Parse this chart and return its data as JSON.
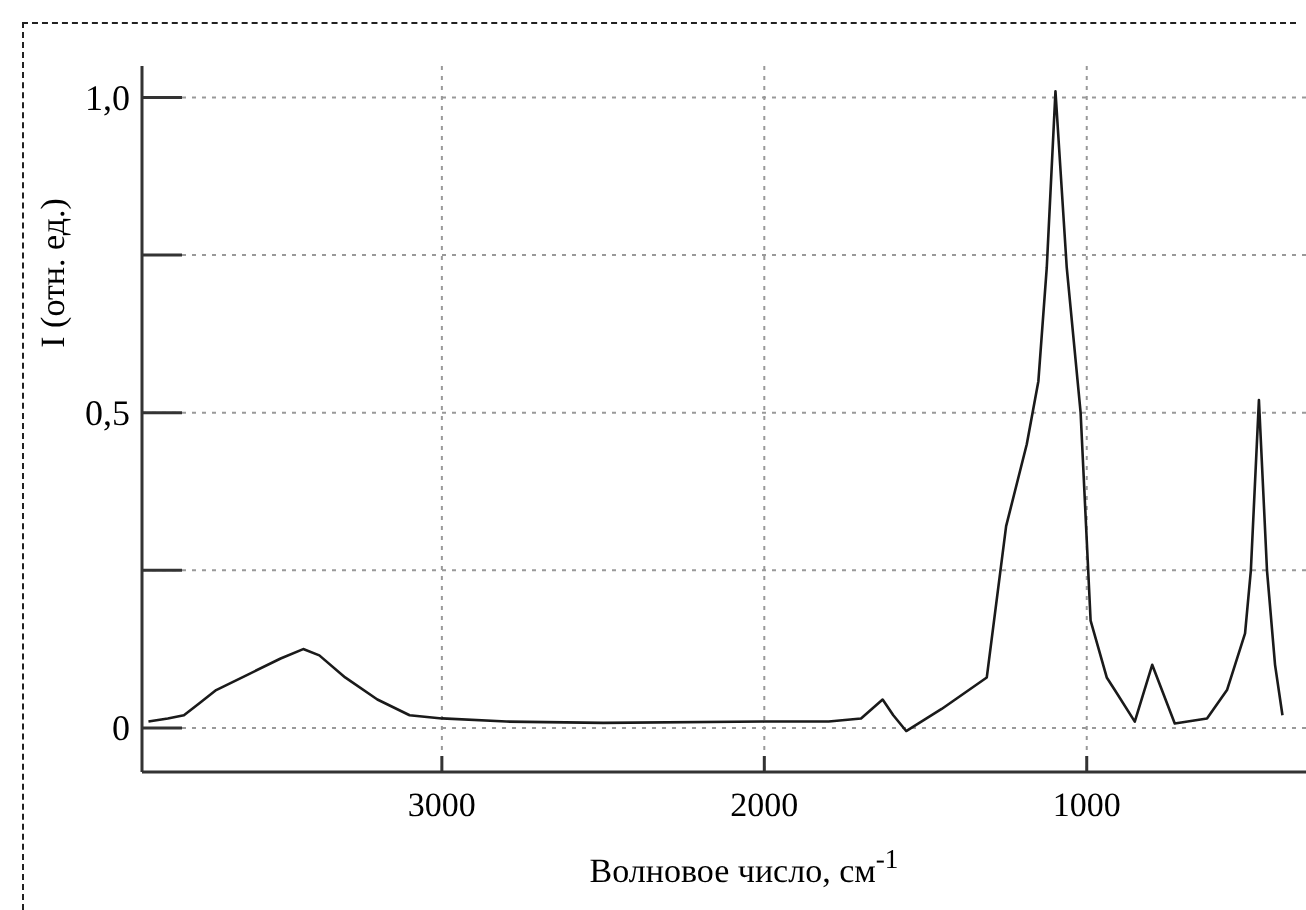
{
  "chart_data": {
    "type": "line",
    "xlabel": "Волновое число, см$^{-1}$",
    "ylabel": "I (отн. ед.)",
    "xlim": [
      3930,
      320
    ],
    "xticks": [
      3000,
      2000,
      1000
    ],
    "ylim": [
      -0.07,
      1.05
    ],
    "yticks": [
      0,
      {
        "value": 0.25,
        "label": null
      },
      {
        "value": 0.5,
        "label": "0,5"
      },
      {
        "value": 0.75,
        "label": null
      },
      {
        "value": 1.0,
        "label": "1,0"
      }
    ],
    "grid": true,
    "marker": "none",
    "line_style": "solid",
    "series": [
      {
        "color": "#1a1a1a",
        "x": [
          3910,
          3850,
          3800,
          3750,
          3700,
          3600,
          3500,
          3430,
          3380,
          3300,
          3200,
          3100,
          3000,
          2800,
          2500,
          2000,
          1800,
          1700,
          1633,
          1600,
          1560,
          1450,
          1310,
          1250,
          1186,
          1150,
          1124,
          1097,
          1062,
          1019,
          988,
          938,
          913,
          851,
          797,
          727,
          627,
          565,
          509,
          491,
          466,
          441,
          416,
          393
        ],
        "values": [
          0.01,
          0.015,
          0.02,
          0.04,
          0.06,
          0.085,
          0.11,
          0.125,
          0.115,
          0.08,
          0.045,
          0.02,
          0.015,
          0.01,
          0.008,
          0.01,
          0.01,
          0.015,
          0.045,
          0.02,
          -0.005,
          0.03,
          0.08,
          0.32,
          0.45,
          0.55,
          0.73,
          1.01,
          0.73,
          0.5,
          0.17,
          0.08,
          0.06,
          0.01,
          0.1,
          0.007,
          0.015,
          0.06,
          0.15,
          0.25,
          0.52,
          0.25,
          0.1,
          0.02
        ]
      }
    ]
  }
}
